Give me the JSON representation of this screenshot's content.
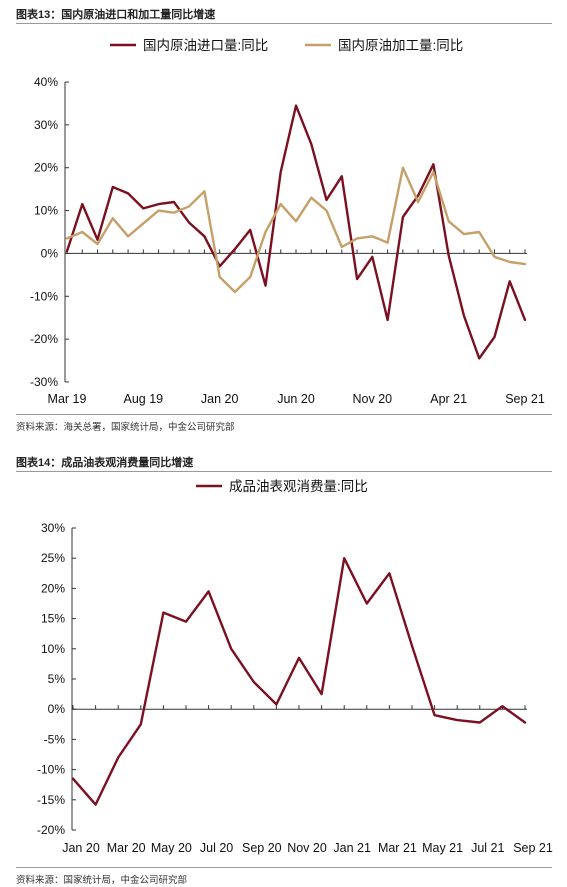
{
  "figures": [
    {
      "label": "图表13：国内原油进口和加工量同比增速",
      "source": "资料来源：海关总署，国家统计局，中金公司研究部",
      "chart_data": {
        "type": "line",
        "title": "",
        "xlabel": "",
        "ylabel": "",
        "ylim": [
          -30,
          40
        ],
        "yticks": [
          "40%",
          "30%",
          "20%",
          "10%",
          "0%",
          "-10%",
          "-20%",
          "-30%"
        ],
        "ytick_values": [
          40,
          30,
          20,
          10,
          0,
          -10,
          -20,
          -30
        ],
        "categories": [
          "Mar 19",
          "Apr 19",
          "May 19",
          "Jun 19",
          "Jul 19",
          "Aug 19",
          "Sep 19",
          "Oct 19",
          "Nov 19",
          "Dec 19",
          "Jan 20",
          "Feb 20",
          "Mar 20",
          "Apr 20",
          "May 20",
          "Jun 20",
          "Jul 20",
          "Aug 20",
          "Sep 20",
          "Oct 20",
          "Nov 20",
          "Dec 20",
          "Jan 21",
          "Feb 21",
          "Mar 21",
          "Apr 21",
          "May 21",
          "Jun 21",
          "Jul 21",
          "Aug 21",
          "Sep 21"
        ],
        "tick_labels": [
          "Mar 19",
          "Aug 19",
          "Jan 20",
          "Jun 20",
          "Nov 20",
          "Apr 21",
          "Sep 21"
        ],
        "tick_indices": [
          0,
          5,
          10,
          15,
          20,
          25,
          30
        ],
        "legend_position": "top",
        "series": [
          {
            "name": "国内原油进口量:同比",
            "color": "#7b1120",
            "values": [
              0.5,
              11.5,
              3.2,
              15.5,
              14.0,
              10.5,
              11.5,
              12.0,
              7.2,
              4.0,
              -3.0,
              1.0,
              5.5,
              -7.5,
              19.0,
              34.5,
              25.5,
              12.5,
              18.0,
              -6.0,
              -0.8,
              -15.5,
              8.5,
              13.5,
              20.8,
              -0.5,
              -14.5,
              -24.5,
              -19.5,
              -6.5,
              -15.5
            ]
          },
          {
            "name": "国内原油加工量:同比",
            "color": "#c5a06a",
            "values": [
              3.5,
              5.0,
              2.2,
              8.2,
              4.0,
              7.0,
              10.0,
              9.5,
              11.0,
              14.5,
              -5.5,
              -9.0,
              -5.5,
              5.0,
              11.5,
              7.5,
              13.0,
              10.0,
              1.5,
              3.5,
              4.0,
              2.5,
              20.0,
              12.0,
              19.0,
              7.5,
              4.5,
              5.0,
              -0.8,
              -2.0,
              -2.5
            ]
          }
        ]
      }
    },
    {
      "label": "图表14：成品油表观消费量同比增速",
      "source": "资料来源：国家统计局，中金公司研究部",
      "chart_data": {
        "type": "line",
        "title": "",
        "xlabel": "",
        "ylabel": "",
        "ylim": [
          -20,
          30
        ],
        "yticks": [
          "30%",
          "25%",
          "20%",
          "15%",
          "10%",
          "5%",
          "0%",
          "-5%",
          "-10%",
          "-15%",
          "-20%"
        ],
        "ytick_values": [
          30,
          25,
          20,
          15,
          10,
          5,
          0,
          -5,
          -10,
          -15,
          -20
        ],
        "categories": [
          "Jan 20",
          "Feb 20",
          "Mar 20",
          "Apr 20",
          "May 20",
          "Jun 20",
          "Jul 20",
          "Aug 20",
          "Sep 20",
          "Oct 20",
          "Nov 20",
          "Dec 20",
          "Jan 21",
          "Feb 21",
          "Mar 21",
          "Apr 21",
          "May 21",
          "Jun 21",
          "Jul 21",
          "Aug 21",
          "Sep 21"
        ],
        "tick_labels": [
          "Jan 20",
          "Mar 20",
          "May 20",
          "Jul 20",
          "Sep 20",
          "Nov 20",
          "Jan 21",
          "Mar 21",
          "May 21",
          "Jul 21",
          "Sep 21"
        ],
        "tick_indices": [
          0,
          2,
          4,
          6,
          8,
          10,
          12,
          14,
          16,
          18,
          20
        ],
        "legend_position": "top",
        "series": [
          {
            "name": "成品油表观消费量:同比",
            "color": "#7b1120",
            "values": [
              -11.5,
              -15.8,
              -8.0,
              -2.5,
              16.0,
              14.5,
              19.5,
              10.0,
              4.5,
              0.8,
              8.5,
              2.5,
              25.0,
              17.5,
              22.5,
              10.5,
              -1.0,
              -1.8,
              -2.2,
              0.5,
              -2.2
            ]
          }
        ]
      }
    }
  ]
}
